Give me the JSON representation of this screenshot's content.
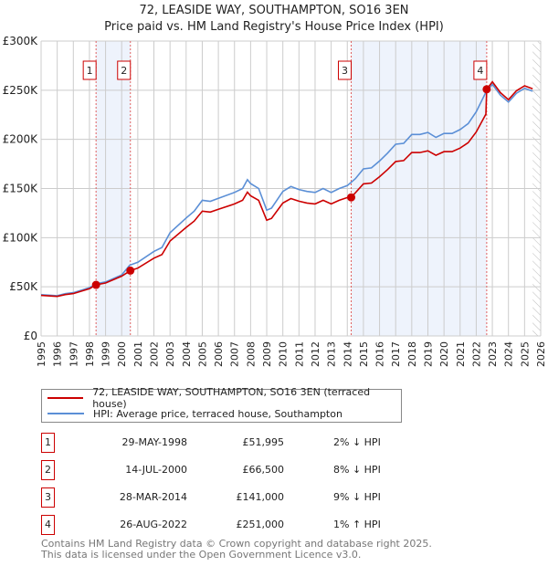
{
  "title": "72, LEASIDE WAY, SOUTHAMPTON, SO16 3EN",
  "subtitle": "Price paid vs. HM Land Registry's House Price Index (HPI)",
  "chart_data": {
    "type": "line",
    "xlim": [
      1995,
      2026
    ],
    "ylim": [
      0,
      300000
    ],
    "x_ticks": [
      "1995",
      "1996",
      "1997",
      "1998",
      "1999",
      "2000",
      "2001",
      "2002",
      "2003",
      "2004",
      "2005",
      "2006",
      "2007",
      "2008",
      "2009",
      "2010",
      "2011",
      "2012",
      "2013",
      "2014",
      "2015",
      "2016",
      "2017",
      "2018",
      "2019",
      "2020",
      "2021",
      "2022",
      "2023",
      "2024",
      "2025",
      "2026"
    ],
    "y_ticks": [
      {
        "v": 0,
        "label": "£0"
      },
      {
        "v": 50000,
        "label": "£50K"
      },
      {
        "v": 100000,
        "label": "£100K"
      },
      {
        "v": 150000,
        "label": "£150K"
      },
      {
        "v": 200000,
        "label": "£200K"
      },
      {
        "v": 250000,
        "label": "£250K"
      },
      {
        "v": 300000,
        "label": "£300K"
      }
    ],
    "grid": true,
    "forecast_hatch_from": 2025.5,
    "shaded_ranges": [
      [
        1998.41,
        2000.54
      ],
      [
        2014.24,
        2022.65
      ]
    ],
    "series": [
      {
        "name": "72, LEASIDE WAY, SOUTHAMPTON, SO16 3EN (terraced house)",
        "color": "#cc0000",
        "x": [
          1995,
          1996,
          1996.5,
          1997,
          1998,
          1998.41,
          1999,
          2000,
          2000.5,
          2000.54,
          2001,
          2002,
          2002.5,
          2003,
          2004,
          2004.5,
          2005,
          2005.5,
          2006,
          2007,
          2007.5,
          2007.8,
          2008,
          2008.5,
          2009,
          2009.3,
          2010,
          2010.5,
          2011,
          2011.5,
          2012,
          2012.5,
          2013,
          2013.5,
          2014,
          2014.24,
          2014.5,
          2015,
          2015.5,
          2016,
          2016.5,
          2017,
          2017.5,
          2018,
          2018.5,
          2019,
          2019.5,
          2020,
          2020.5,
          2021,
          2021.5,
          2022,
          2022.6,
          2022.65,
          2023,
          2023.5,
          2024,
          2024.5,
          2025,
          2025.5
        ],
        "y": [
          41200,
          40200,
          42100,
          43100,
          48000,
          51995,
          53900,
          60800,
          66000,
          66500,
          69000,
          79100,
          82800,
          96600,
          110400,
          116800,
          127000,
          126000,
          128800,
          134300,
          138000,
          146300,
          142600,
          138000,
          117800,
          119600,
          135200,
          139800,
          137100,
          135200,
          134300,
          138000,
          134300,
          138000,
          140800,
          141000,
          145600,
          154700,
          155600,
          162000,
          169300,
          177500,
          178400,
          186600,
          186600,
          188400,
          183800,
          187500,
          187500,
          191100,
          196600,
          207500,
          225700,
          251000,
          258600,
          247500,
          240400,
          249500,
          254500,
          251500
        ]
      },
      {
        "name": "HPI: Average price, terraced house, Southampton",
        "color": "#5b8fd6",
        "x": [
          1995,
          1996,
          1996.5,
          1997,
          1998,
          1998.41,
          1999,
          2000,
          2000.5,
          2001,
          2002,
          2002.5,
          2003,
          2004,
          2004.5,
          2005,
          2005.5,
          2006,
          2007,
          2007.5,
          2007.8,
          2008,
          2008.5,
          2009,
          2009.3,
          2010,
          2010.5,
          2011,
          2011.5,
          2012,
          2012.5,
          2013,
          2013.5,
          2014,
          2014.5,
          2015,
          2015.5,
          2016,
          2016.5,
          2017,
          2017.5,
          2018,
          2018.5,
          2019,
          2019.5,
          2020,
          2020.5,
          2021,
          2021.5,
          2022,
          2022.6,
          2023,
          2023.5,
          2024,
          2024.5,
          2025,
          2025.5
        ],
        "y": [
          42000,
          41000,
          43000,
          44000,
          49000,
          53000,
          55000,
          62000,
          72000,
          75000,
          86000,
          90000,
          105000,
          120000,
          127000,
          138000,
          137000,
          140000,
          146000,
          150000,
          159000,
          155000,
          150000,
          128000,
          130000,
          147000,
          152000,
          149000,
          147000,
          146000,
          150000,
          146000,
          150000,
          153000,
          160000,
          170000,
          171000,
          178000,
          186000,
          195000,
          196000,
          205000,
          205000,
          207000,
          202000,
          206000,
          206000,
          210000,
          216000,
          228000,
          248000,
          256000,
          245000,
          238000,
          247000,
          252000,
          249000
        ]
      }
    ],
    "sales": [
      {
        "id": "1",
        "date": "29-MAY-1998",
        "x": 1998.41,
        "price": 51995,
        "price_label": "£51,995",
        "hpi_label": "2% ↓ HPI"
      },
      {
        "id": "2",
        "date": "14-JUL-2000",
        "x": 2000.54,
        "price": 66500,
        "price_label": "£66,500",
        "hpi_label": "8% ↓ HPI"
      },
      {
        "id": "3",
        "date": "28-MAR-2014",
        "x": 2014.24,
        "price": 141000,
        "price_label": "£141,000",
        "hpi_label": "9% ↓ HPI"
      },
      {
        "id": "4",
        "date": "26-AUG-2022",
        "x": 2022.65,
        "price": 251000,
        "price_label": "£251,000",
        "hpi_label": "1% ↑ HPI"
      }
    ]
  },
  "legend": {
    "property": "72, LEASIDE WAY, SOUTHAMPTON, SO16 3EN (terraced house)",
    "hpi": "HPI: Average price, terraced house, Southampton"
  },
  "footer": {
    "line1": "Contains HM Land Registry data © Crown copyright and database right 2025.",
    "line2": "This data is licensed under the Open Government Licence v3.0."
  }
}
